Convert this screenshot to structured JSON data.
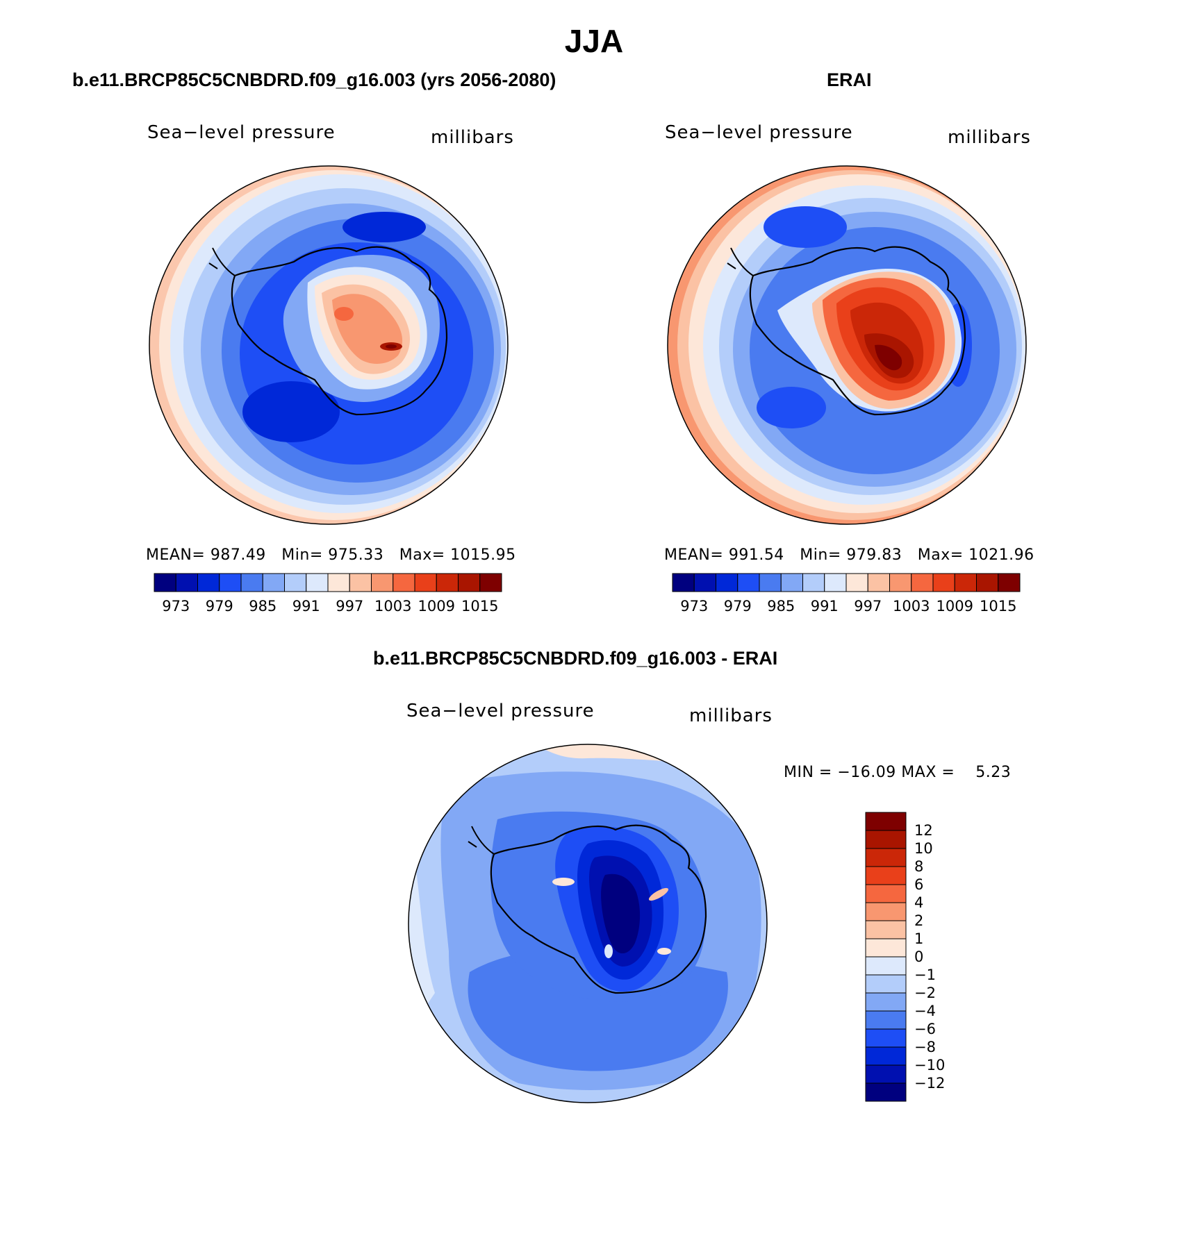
{
  "title": "JJA",
  "panels": [
    {
      "id": "case",
      "case_title": "b.e11.BRCP85C5CNBDRD.f09_g16.003 (yrs 2056-2080)",
      "left_label": "Sea−level pressure",
      "right_label": "millibars",
      "stats": {
        "mean_label": "MEAN=",
        "mean": "987.49",
        "min_label": "Min=",
        "min": "975.33",
        "max_label": "Max=",
        "max": "1015.95"
      }
    },
    {
      "id": "obs",
      "case_title": "ERAI",
      "left_label": "Sea−level pressure",
      "right_label": "millibars",
      "stats": {
        "mean_label": "MEAN=",
        "mean": "991.54",
        "min_label": "Min=",
        "min": "979.83",
        "max_label": "Max=",
        "max": "1021.96"
      }
    }
  ],
  "diff_panel": {
    "case_title": "b.e11.BRCP85C5CNBDRD.f09_g16.003 - ERAI",
    "left_label": "Sea−level pressure",
    "right_label": "millibars",
    "minmax": {
      "min_label": "MIN =",
      "min": "−16.09",
      "max_label": "MAX =",
      "max": "5.23"
    }
  },
  "abs_colorbar": {
    "colors": [
      "#00007f",
      "#0010b0",
      "#0028d8",
      "#1e4ef5",
      "#4a7bf0",
      "#82a8f5",
      "#b3cdfa",
      "#dde9fc",
      "#fde7d9",
      "#fbc2a4",
      "#f89770",
      "#f5673f",
      "#e9401a",
      "#cb2708",
      "#a91500",
      "#7e0000"
    ],
    "tick_labels": [
      "973",
      "979",
      "985",
      "991",
      "997",
      "1003",
      "1009",
      "1015"
    ]
  },
  "diff_colorbar": {
    "colors": [
      "#00007f",
      "#0010b0",
      "#0028d8",
      "#1e4ef5",
      "#4a7bf0",
      "#82a8f5",
      "#b3cdfa",
      "#dde9fc",
      "#fde7d9",
      "#fbc2a4",
      "#f89770",
      "#f5673f",
      "#e9401a",
      "#cb2708",
      "#a91500",
      "#7e0000"
    ],
    "tick_labels": [
      "−12",
      "−10",
      "−8",
      "−6",
      "−4",
      "−2",
      "−1",
      "0",
      "1",
      "2",
      "4",
      "6",
      "8",
      "10",
      "12"
    ]
  },
  "colors": {
    "coast": "#000000"
  }
}
